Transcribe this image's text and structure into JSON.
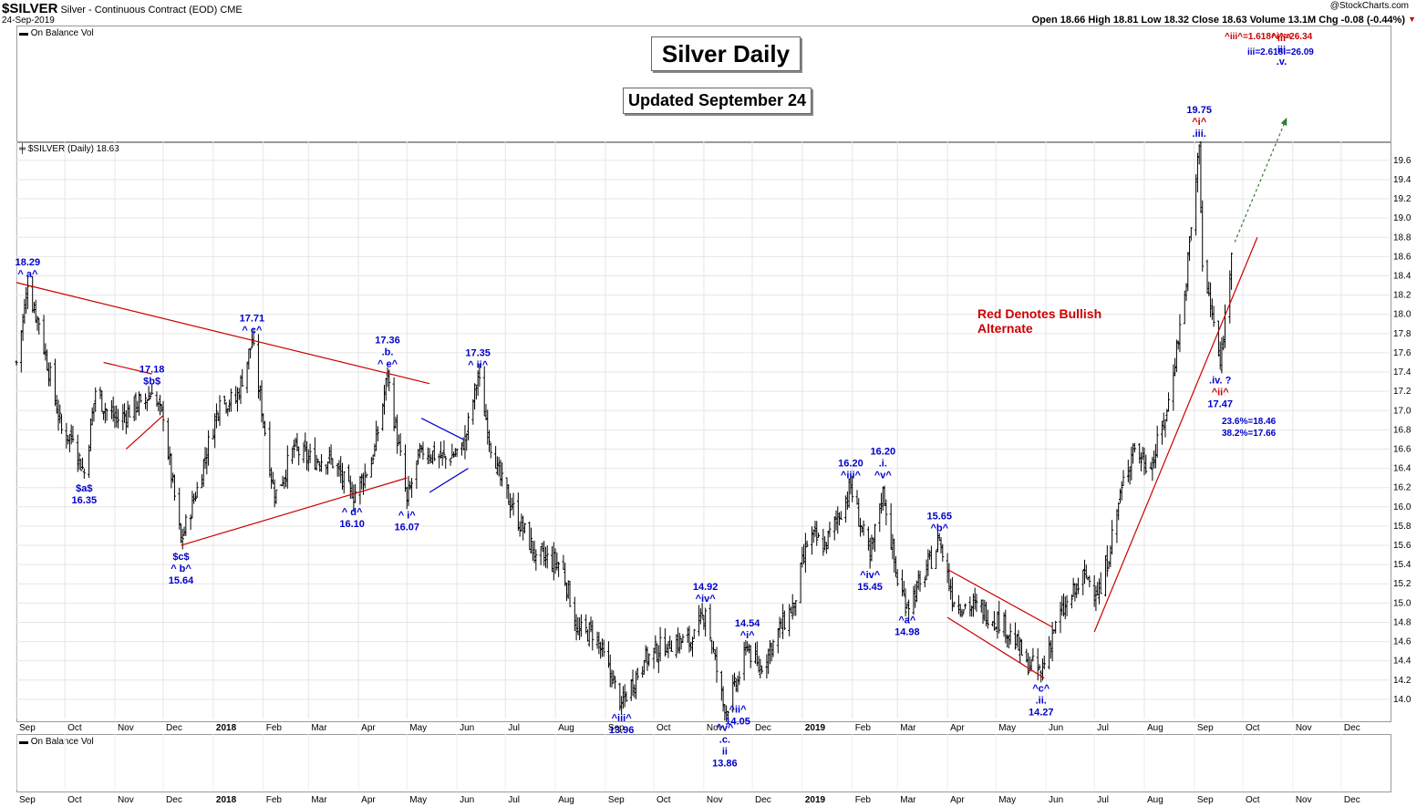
{
  "header": {
    "symbol": "$SILVER",
    "description": "Silver - Continuous Contract (EOD)",
    "exchange": "CME",
    "date": "24-Sep-2019",
    "copyright": "@StockCharts.com",
    "ohlc": "Open 18.66  High 18.81  Low 18.32  Close 18.63  Volume 13.1M  Chg -0.08 (-0.44%)"
  },
  "panels": {
    "top_label": "On Balance Vol",
    "bottom_label": "On Balance Vol",
    "price_label": "$SILVER (Daily) 18.63"
  },
  "titles": {
    "main": "Silver Daily",
    "sub": "Updated September 24"
  },
  "notes": {
    "red_note_1": "Red Denotes Bullish",
    "red_note_2": "Alternate",
    "target_red": "^iii^=1.618^i^=26.34",
    "target_blue": "iii=2.618i=26.09",
    "fib_1": "23.6%=18.46",
    "fib_2": "38.2%=17.66"
  },
  "colors": {
    "up_bar": "#000000",
    "trend_red": "#cc0000",
    "label_blue": "#0000cc",
    "label_red": "#cc0000",
    "arrow_green": "#2e7d32"
  },
  "chart_data": {
    "type": "ohlc",
    "title": "Silver Daily",
    "ylim": [
      13.8,
      19.75
    ],
    "y_ticks": [
      14.0,
      14.2,
      14.4,
      14.6,
      14.8,
      15.0,
      15.2,
      15.4,
      15.6,
      15.8,
      16.0,
      16.2,
      16.4,
      16.6,
      16.8,
      17.0,
      17.2,
      17.4,
      17.6,
      17.8,
      18.0,
      18.2,
      18.4,
      18.6,
      18.8,
      19.0,
      19.2,
      19.4,
      19.6
    ],
    "x_ticks": [
      "Sep",
      "Oct",
      "Nov",
      "Dec",
      "2018",
      "Feb",
      "Mar",
      "Apr",
      "May",
      "Jun",
      "Jul",
      "Aug",
      "Sep",
      "Oct",
      "Nov",
      "Dec",
      "2019",
      "Feb",
      "Mar",
      "Apr",
      "May",
      "Jun",
      "Jul",
      "Aug",
      "Sep",
      "Oct",
      "Nov",
      "Dec"
    ],
    "x_range": [
      "2017-09-01",
      "2019-12-31"
    ],
    "close_path": [
      [
        "2017-09-01",
        17.5
      ],
      [
        "2017-09-08",
        18.29
      ],
      [
        "2017-09-15",
        17.9
      ],
      [
        "2017-09-29",
        16.8
      ],
      [
        "2017-10-06",
        16.7
      ],
      [
        "2017-10-13",
        16.35
      ],
      [
        "2017-10-20",
        17.2
      ],
      [
        "2017-10-27",
        17.0
      ],
      [
        "2017-11-03",
        16.9
      ],
      [
        "2017-11-17",
        17.1
      ],
      [
        "2017-11-24",
        17.18
      ],
      [
        "2017-12-01",
        16.9
      ],
      [
        "2017-12-12",
        15.64
      ],
      [
        "2017-12-22",
        16.2
      ],
      [
        "2018-01-05",
        17.1
      ],
      [
        "2018-01-15",
        17.1
      ],
      [
        "2018-01-25",
        17.71
      ],
      [
        "2018-02-08",
        16.1
      ],
      [
        "2018-02-20",
        16.6
      ],
      [
        "2018-03-01",
        16.5
      ],
      [
        "2018-03-15",
        16.5
      ],
      [
        "2018-03-28",
        16.1
      ],
      [
        "2018-04-10",
        16.5
      ],
      [
        "2018-04-19",
        17.36
      ],
      [
        "2018-05-01",
        16.07
      ],
      [
        "2018-05-10",
        16.6
      ],
      [
        "2018-05-25",
        16.5
      ],
      [
        "2018-06-05",
        16.6
      ],
      [
        "2018-06-14",
        17.35
      ],
      [
        "2018-06-25",
        16.4
      ],
      [
        "2018-07-05",
        16.0
      ],
      [
        "2018-07-20",
        15.5
      ],
      [
        "2018-08-05",
        15.4
      ],
      [
        "2018-08-15",
        14.7
      ],
      [
        "2018-08-25",
        14.7
      ],
      [
        "2018-09-05",
        14.2
      ],
      [
        "2018-09-11",
        13.96
      ],
      [
        "2018-09-25",
        14.4
      ],
      [
        "2018-10-10",
        14.6
      ],
      [
        "2018-10-25",
        14.6
      ],
      [
        "2018-11-02",
        14.92
      ],
      [
        "2018-11-14",
        13.86
      ],
      [
        "2018-11-22",
        14.2
      ],
      [
        "2018-11-28",
        14.54
      ],
      [
        "2018-12-05",
        14.3
      ],
      [
        "2018-12-14",
        14.6
      ],
      [
        "2018-12-27",
        15.0
      ],
      [
        "2019-01-05",
        15.7
      ],
      [
        "2019-01-15",
        15.6
      ],
      [
        "2019-01-31",
        16.2
      ],
      [
        "2019-02-12",
        15.45
      ],
      [
        "2019-02-20",
        16.2
      ],
      [
        "2019-03-01",
        15.2
      ],
      [
        "2019-03-07",
        14.98
      ],
      [
        "2019-03-15",
        15.2
      ],
      [
        "2019-03-27",
        15.65
      ],
      [
        "2019-04-05",
        15.0
      ],
      [
        "2019-04-20",
        14.95
      ],
      [
        "2019-05-05",
        14.8
      ],
      [
        "2019-05-20",
        14.4
      ],
      [
        "2019-05-29",
        14.27
      ],
      [
        "2019-06-07",
        14.8
      ],
      [
        "2019-06-15",
        15.0
      ],
      [
        "2019-06-25",
        15.3
      ],
      [
        "2019-07-05",
        15.1
      ],
      [
        "2019-07-18",
        16.2
      ],
      [
        "2019-07-25",
        16.6
      ],
      [
        "2019-08-05",
        16.4
      ],
      [
        "2019-08-15",
        17.0
      ],
      [
        "2019-08-26",
        18.2
      ],
      [
        "2019-09-04",
        19.75
      ],
      [
        "2019-09-06",
        18.5
      ],
      [
        "2019-09-12",
        18.0
      ],
      [
        "2019-09-17",
        17.47
      ],
      [
        "2019-09-24",
        18.63
      ]
    ],
    "labels": [
      {
        "date": "2017-09-08",
        "price": 18.29,
        "lines": [
          "18.29",
          "^ a^"
        ],
        "pos": "above",
        "color": "blue"
      },
      {
        "date": "2017-10-13",
        "price": 16.35,
        "lines": [
          "$a$",
          "16.35"
        ],
        "pos": "below",
        "color": "blue"
      },
      {
        "date": "2017-11-24",
        "price": 17.18,
        "lines": [
          "17.18",
          "$b$"
        ],
        "pos": "above",
        "color": "blue"
      },
      {
        "date": "2017-12-12",
        "price": 15.64,
        "lines": [
          "$c$",
          "^ b^",
          "15.64"
        ],
        "pos": "below",
        "color": "blue"
      },
      {
        "date": "2018-01-25",
        "price": 17.71,
        "lines": [
          "17.71",
          "^ c^"
        ],
        "pos": "above",
        "color": "blue"
      },
      {
        "date": "2018-03-28",
        "price": 16.1,
        "lines": [
          "^ d^",
          "16.10"
        ],
        "pos": "below",
        "color": "blue"
      },
      {
        "date": "2018-04-19",
        "price": 17.36,
        "lines": [
          "17.36",
          ".b.",
          "^ e^"
        ],
        "pos": "above",
        "color": "blue"
      },
      {
        "date": "2018-05-01",
        "price": 16.07,
        "lines": [
          "^ i^",
          "16.07"
        ],
        "pos": "below",
        "color": "blue"
      },
      {
        "date": "2018-06-14",
        "price": 17.35,
        "lines": [
          "17.35",
          "^ ii^"
        ],
        "pos": "above",
        "color": "blue"
      },
      {
        "date": "2018-09-11",
        "price": 13.96,
        "lines": [
          "^iii^",
          "13.96"
        ],
        "pos": "below",
        "color": "blue"
      },
      {
        "date": "2018-11-02",
        "price": 14.92,
        "lines": [
          "14.92",
          "^iv^"
        ],
        "pos": "above",
        "color": "blue"
      },
      {
        "date": "2018-11-14",
        "price": 13.86,
        "lines": [
          "^v^",
          ".c.",
          "ii",
          "13.86"
        ],
        "pos": "below",
        "color": "blue"
      },
      {
        "date": "2018-11-22",
        "price": 14.05,
        "lines": [
          "^ii^",
          "14.05"
        ],
        "pos": "below",
        "color": "blue"
      },
      {
        "date": "2018-11-28",
        "price": 14.54,
        "lines": [
          "14.54",
          "^i^"
        ],
        "pos": "above",
        "color": "blue"
      },
      {
        "date": "2019-01-31",
        "price": 16.2,
        "lines": [
          "16.20",
          "^iii^"
        ],
        "pos": "above",
        "color": "blue"
      },
      {
        "date": "2019-02-12",
        "price": 15.45,
        "lines": [
          "^iv^",
          "15.45"
        ],
        "pos": "below",
        "color": "blue"
      },
      {
        "date": "2019-02-20",
        "price": 16.2,
        "lines": [
          "16.20",
          ".i.",
          "^v^"
        ],
        "pos": "above",
        "color": "blue"
      },
      {
        "date": "2019-03-07",
        "price": 14.98,
        "lines": [
          "^a^",
          "14.98"
        ],
        "pos": "below",
        "color": "blue"
      },
      {
        "date": "2019-03-27",
        "price": 15.65,
        "lines": [
          "15.65",
          "^b^"
        ],
        "pos": "above",
        "color": "blue"
      },
      {
        "date": "2019-05-29",
        "price": 14.27,
        "lines": [
          "^c^",
          ".ii.",
          "14.27"
        ],
        "pos": "below",
        "color": "blue"
      },
      {
        "date": "2019-09-04",
        "price": 19.75,
        "lines": [
          "19.75",
          "^i^",
          ".iii."
        ],
        "pos": "above",
        "color": "mixed"
      },
      {
        "date": "2019-09-17",
        "price": 17.47,
        "lines": [
          ".iv. ?",
          "^ii^",
          "17.47"
        ],
        "pos": "below",
        "color": "mixed"
      },
      {
        "date": "2019-10-25",
        "price": 19.75,
        "lines": [
          "^iii^",
          "iii",
          ".v."
        ],
        "pos": "target",
        "color": "mixed"
      }
    ],
    "trend_lines": [
      {
        "color": "red",
        "from": [
          "2017-09-01",
          18.33
        ],
        "to": [
          "2018-05-15",
          17.28
        ]
      },
      {
        "color": "red",
        "from": [
          "2017-12-12",
          15.6
        ],
        "to": [
          "2018-05-01",
          16.3
        ]
      },
      {
        "color": "red",
        "from": [
          "2017-10-25",
          17.5
        ],
        "to": [
          "2017-11-24",
          17.38
        ]
      },
      {
        "color": "red",
        "from": [
          "2017-11-08",
          16.6
        ],
        "to": [
          "2017-12-01",
          16.95
        ]
      },
      {
        "color": "blue",
        "from": [
          "2018-05-10",
          16.92
        ],
        "to": [
          "2018-06-05",
          16.7
        ]
      },
      {
        "color": "blue",
        "from": [
          "2018-05-15",
          16.15
        ],
        "to": [
          "2018-06-08",
          16.4
        ]
      },
      {
        "color": "red",
        "from": [
          "2019-04-01",
          15.35
        ],
        "to": [
          "2019-06-05",
          14.75
        ]
      },
      {
        "color": "red",
        "from": [
          "2019-04-01",
          14.85
        ],
        "to": [
          "2019-05-31",
          14.22
        ]
      },
      {
        "color": "red",
        "from": [
          "2019-07-01",
          14.7
        ],
        "to": [
          "2019-10-10",
          18.8
        ]
      }
    ],
    "projection": {
      "from": [
        "2019-09-26",
        18.75
      ],
      "to": [
        "2019-10-28",
        19.75
      ]
    }
  }
}
